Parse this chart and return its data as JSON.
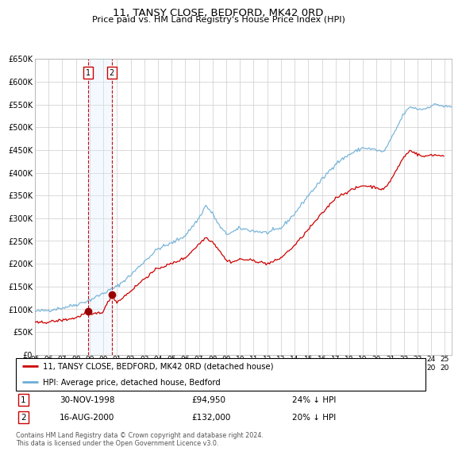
{
  "title": "11, TANSY CLOSE, BEDFORD, MK42 0RD",
  "subtitle": "Price paid vs. HM Land Registry's House Price Index (HPI)",
  "legend_line1": "11, TANSY CLOSE, BEDFORD, MK42 0RD (detached house)",
  "legend_line2": "HPI: Average price, detached house, Bedford",
  "footer": "Contains HM Land Registry data © Crown copyright and database right 2024.\nThis data is licensed under the Open Government Licence v3.0.",
  "transactions": [
    {
      "label": "1",
      "date": "30-NOV-1998",
      "price": "94,950",
      "pct": "24%",
      "dir": "↓"
    },
    {
      "label": "2",
      "date": "16-AUG-2000",
      "price": "132,000",
      "pct": "20%",
      "dir": "↓"
    }
  ],
  "ylim": [
    0,
    650000
  ],
  "yticks": [
    0,
    50000,
    100000,
    150000,
    200000,
    250000,
    300000,
    350000,
    400000,
    450000,
    500000,
    550000,
    600000,
    650000
  ],
  "xlim_start": 1995.0,
  "xlim_end": 2025.5,
  "hpi_color": "#6baed6",
  "price_color": "#cc0000",
  "marker_color": "#990000",
  "vline_color": "#cc0000",
  "shade_color": "#ddeeff",
  "grid_color": "#cccccc",
  "background_color": "#ffffff",
  "trans1_x": 1998.917,
  "trans1_y": 94950,
  "trans2_x": 2000.625,
  "trans2_y": 132000,
  "xtick_years": [
    1995,
    1996,
    1997,
    1998,
    1999,
    2000,
    2001,
    2002,
    2003,
    2004,
    2005,
    2006,
    2007,
    2008,
    2009,
    2010,
    2011,
    2012,
    2013,
    2014,
    2015,
    2016,
    2017,
    2018,
    2019,
    2020,
    2021,
    2022,
    2023,
    2024,
    2025
  ]
}
